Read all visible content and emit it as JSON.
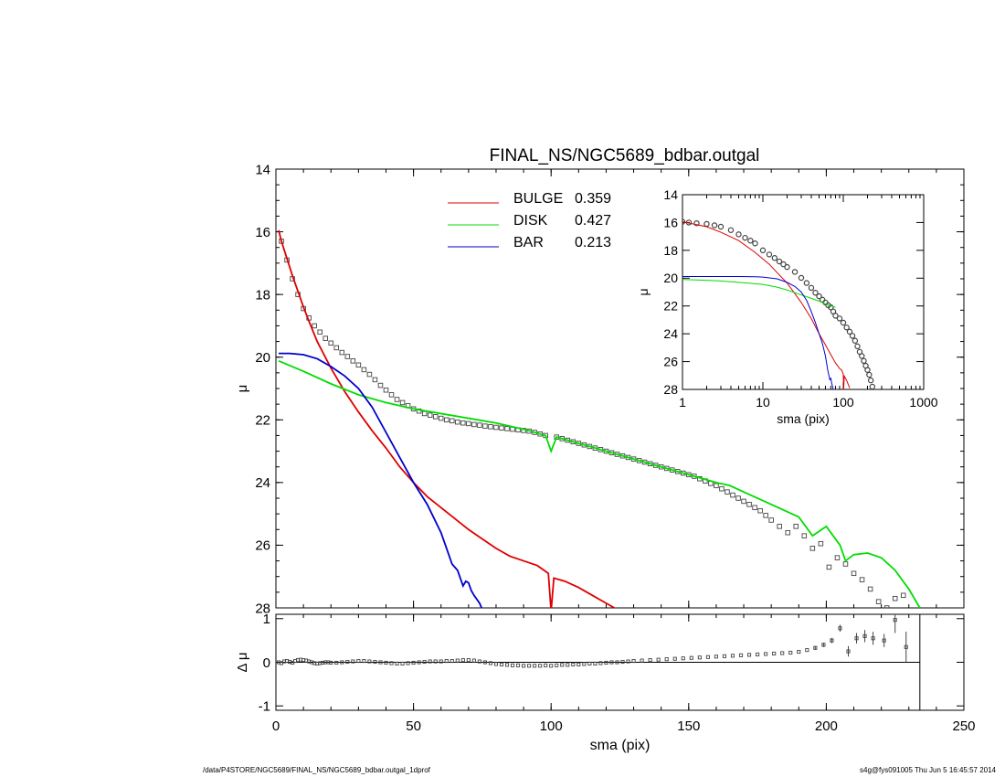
{
  "footer": {
    "left": "/data/P4STORE/NGC5689/FINAL_NS/NGC5689_bdbar.outgal_1dprof",
    "right": "s4g@fys091005  Thu Jun  5 16:45:57 2014"
  },
  "colors": {
    "bulge": "#dd0000",
    "disk": "#00dd00",
    "bar": "#0000cc",
    "data": "#444444"
  },
  "chart_data": [
    {
      "type": "line",
      "title": "FINAL_NS/NGC5689_bdbar.outgal",
      "xlabel": "sma (pix)",
      "ylabel": "μ",
      "xlim": [
        0,
        250
      ],
      "ylim": [
        28,
        14
      ],
      "xticks": [
        "0",
        "50",
        "100",
        "150",
        "200",
        "250"
      ],
      "yticks": [
        "14",
        "16",
        "18",
        "20",
        "22",
        "24",
        "26",
        "28"
      ],
      "legend": [
        {
          "label": "BULGE",
          "value": "0.359",
          "color": "#dd0000"
        },
        {
          "label": "DISK",
          "value": "0.427",
          "color": "#00dd00"
        },
        {
          "label": "BAR",
          "value": "0.213",
          "color": "#0000cc"
        }
      ],
      "legend_placement": "top-center",
      "series": [
        {
          "name": "BULGE",
          "color": "#dd0000",
          "x": [
            1,
            2,
            4,
            6,
            8,
            10,
            12,
            15,
            20,
            25,
            30,
            35,
            40,
            45,
            50,
            55,
            60,
            65,
            70,
            75,
            80,
            85,
            90,
            95,
            99,
            100,
            101,
            105,
            110,
            115,
            120,
            124
          ],
          "y": [
            15.95,
            16.3,
            16.85,
            17.4,
            17.9,
            18.4,
            18.85,
            19.5,
            20.35,
            21.1,
            21.75,
            22.35,
            22.9,
            23.5,
            24.0,
            24.45,
            24.8,
            25.15,
            25.5,
            25.8,
            26.1,
            26.35,
            26.5,
            26.65,
            26.9,
            28.1,
            27.05,
            27.15,
            27.35,
            27.6,
            27.85,
            28.05
          ]
        },
        {
          "name": "DISK",
          "color": "#00dd00",
          "x": [
            1,
            10,
            20,
            30,
            40,
            50,
            60,
            70,
            80,
            90,
            98,
            100,
            102,
            110,
            120,
            130,
            140,
            150,
            160,
            165,
            170,
            180,
            185,
            190,
            195,
            200,
            205,
            207,
            210,
            215,
            220,
            225,
            230,
            234
          ],
          "y": [
            20.12,
            20.45,
            20.85,
            21.2,
            21.45,
            21.65,
            21.8,
            21.95,
            22.1,
            22.3,
            22.5,
            23.0,
            22.55,
            22.75,
            23.0,
            23.25,
            23.5,
            23.75,
            24.0,
            24.1,
            24.3,
            24.7,
            24.9,
            25.1,
            25.7,
            25.4,
            26.0,
            26.5,
            26.3,
            26.25,
            26.4,
            26.8,
            27.4,
            28.0
          ]
        },
        {
          "name": "BAR",
          "color": "#0000cc",
          "x": [
            1,
            5,
            10,
            15,
            20,
            25,
            30,
            35,
            40,
            45,
            50,
            55,
            60,
            62,
            64,
            66,
            68,
            69,
            70,
            71,
            72,
            74,
            75
          ],
          "y": [
            19.88,
            19.88,
            19.92,
            20.05,
            20.3,
            20.6,
            21.0,
            21.6,
            22.4,
            23.2,
            24.0,
            24.7,
            25.6,
            26.1,
            26.6,
            26.8,
            27.3,
            27.15,
            27.2,
            27.45,
            27.6,
            27.85,
            28.05
          ]
        },
        {
          "name": "",
          "color": "#444444",
          "marker": "square",
          "x": [
            2,
            4,
            6,
            8,
            10,
            12,
            14,
            16,
            18,
            20,
            22,
            24,
            26,
            28,
            30,
            32,
            34,
            36,
            38,
            40,
            42,
            44,
            46,
            48,
            50,
            52,
            54,
            56,
            58,
            60,
            62,
            64,
            66,
            68,
            70,
            72,
            74,
            76,
            78,
            80,
            82,
            84,
            86,
            88,
            90,
            92,
            94,
            96,
            98,
            102,
            104,
            106,
            108,
            110,
            112,
            114,
            116,
            118,
            120,
            122,
            124,
            126,
            128,
            130,
            132,
            134,
            136,
            138,
            140,
            142,
            144,
            146,
            148,
            150,
            152,
            154,
            156,
            158,
            160,
            162,
            164,
            166,
            168,
            170,
            172,
            174,
            176,
            178,
            180,
            183,
            186,
            189,
            192,
            195,
            198,
            201,
            204,
            207,
            210,
            213,
            216,
            219,
            222,
            225,
            228
          ],
          "y": [
            16.3,
            16.9,
            17.5,
            18.0,
            18.45,
            18.75,
            19.0,
            19.2,
            19.4,
            19.55,
            19.7,
            19.85,
            19.98,
            20.12,
            20.25,
            20.4,
            20.55,
            20.72,
            20.9,
            21.05,
            21.2,
            21.35,
            21.45,
            21.55,
            21.65,
            21.72,
            21.8,
            21.85,
            21.9,
            21.95,
            22.0,
            22.03,
            22.07,
            22.1,
            22.12,
            22.15,
            22.17,
            22.2,
            22.22,
            22.24,
            22.26,
            22.28,
            22.3,
            22.32,
            22.34,
            22.36,
            22.4,
            22.45,
            22.5,
            22.55,
            22.6,
            22.65,
            22.7,
            22.75,
            22.8,
            22.85,
            22.9,
            22.95,
            23.0,
            23.05,
            23.1,
            23.15,
            23.2,
            23.25,
            23.3,
            23.35,
            23.4,
            23.45,
            23.5,
            23.55,
            23.6,
            23.65,
            23.7,
            23.75,
            23.8,
            23.88,
            23.95,
            24.03,
            24.1,
            24.2,
            24.3,
            24.4,
            24.5,
            24.6,
            24.7,
            24.8,
            24.9,
            25.05,
            25.2,
            25.4,
            25.6,
            25.4,
            25.7,
            26.1,
            25.95,
            26.7,
            26.4,
            26.6,
            26.9,
            27.1,
            27.4,
            27.8,
            28.0,
            27.7,
            27.6
          ]
        }
      ]
    },
    {
      "type": "scatter",
      "ylabel": "Δ μ",
      "xlim": [
        0,
        250
      ],
      "ylim": [
        -1.1,
        1.1
      ],
      "xticks": [
        "0",
        "50",
        "100",
        "150",
        "200",
        "250"
      ],
      "yticks": [
        "-1",
        "0",
        "1"
      ],
      "vline_x": 234,
      "series": [
        {
          "name": "",
          "color": "#444444",
          "marker": "square",
          "x": [
            1,
            2,
            3,
            4,
            5,
            6,
            7,
            8,
            9,
            10,
            11,
            12,
            13,
            14,
            15,
            16,
            17,
            18,
            19,
            20,
            22,
            24,
            26,
            28,
            30,
            32,
            34,
            36,
            38,
            40,
            42,
            44,
            46,
            48,
            50,
            52,
            54,
            56,
            58,
            60,
            62,
            64,
            66,
            68,
            70,
            72,
            74,
            76,
            78,
            80,
            82,
            84,
            86,
            88,
            90,
            92,
            94,
            96,
            98,
            100,
            102,
            104,
            106,
            108,
            110,
            112,
            114,
            116,
            118,
            120,
            122,
            124,
            126,
            128,
            130,
            133,
            136,
            139,
            142,
            145,
            148,
            151,
            154,
            157,
            160,
            163,
            166,
            169,
            172,
            175,
            178,
            181,
            184,
            187,
            190,
            193,
            196,
            199,
            202,
            205,
            208,
            211,
            214,
            217,
            221,
            225,
            229
          ],
          "y": [
            0.0,
            -0.02,
            0.02,
            0.03,
            0.01,
            -0.01,
            0.03,
            0.05,
            0.06,
            0.05,
            0.04,
            0.02,
            0.0,
            -0.02,
            -0.03,
            -0.02,
            -0.01,
            0.0,
            0.0,
            -0.01,
            -0.01,
            0.0,
            0.01,
            0.02,
            0.03,
            0.03,
            0.02,
            0.01,
            0.0,
            -0.01,
            -0.02,
            -0.03,
            -0.03,
            -0.02,
            -0.01,
            0.0,
            0.01,
            0.02,
            0.02,
            0.02,
            0.03,
            0.03,
            0.04,
            0.05,
            0.05,
            0.04,
            0.02,
            0.0,
            -0.02,
            -0.04,
            -0.05,
            -0.06,
            -0.07,
            -0.07,
            -0.08,
            -0.08,
            -0.08,
            -0.08,
            -0.07,
            -0.08,
            -0.07,
            -0.06,
            -0.06,
            -0.05,
            -0.05,
            -0.04,
            -0.03,
            -0.03,
            -0.02,
            -0.01,
            0.0,
            0.0,
            0.01,
            0.02,
            0.03,
            0.04,
            0.05,
            0.06,
            0.07,
            0.08,
            0.09,
            0.1,
            0.11,
            0.12,
            0.13,
            0.14,
            0.15,
            0.16,
            0.17,
            0.18,
            0.19,
            0.2,
            0.21,
            0.22,
            0.24,
            0.28,
            0.33,
            0.4,
            0.5,
            0.78,
            0.25,
            0.55,
            0.6,
            0.55,
            0.5,
            0.97,
            0.35
          ],
          "err": [
            0,
            0,
            0,
            0,
            0,
            0,
            0,
            0,
            0,
            0,
            0,
            0,
            0,
            0,
            0,
            0,
            0,
            0,
            0,
            0,
            0,
            0,
            0,
            0,
            0,
            0,
            0,
            0,
            0,
            0,
            0,
            0,
            0,
            0,
            0,
            0,
            0,
            0,
            0,
            0,
            0,
            0,
            0,
            0,
            0,
            0,
            0,
            0,
            0,
            0,
            0,
            0,
            0,
            0,
            0,
            0,
            0,
            0,
            0,
            0,
            0,
            0,
            0,
            0,
            0,
            0,
            0,
            0,
            0,
            0,
            0,
            0,
            0,
            0,
            0,
            0,
            0,
            0,
            0,
            0,
            0,
            0,
            0,
            0,
            0,
            0,
            0,
            0,
            0,
            0,
            0,
            0,
            0,
            0,
            0,
            0,
            0.04,
            0.05,
            0.06,
            0.08,
            0.12,
            0.12,
            0.14,
            0.15,
            0.15,
            0.3,
            0.35
          ]
        }
      ]
    },
    {
      "type": "line",
      "xlabel": "sma (pix)",
      "ylabel": "μ",
      "xscale": "log",
      "xlim": [
        1,
        1000
      ],
      "ylim": [
        28,
        14
      ],
      "xticks": [
        "1",
        "10",
        "100",
        "1000"
      ],
      "yticks": [
        "14",
        "16",
        "18",
        "20",
        "22",
        "24",
        "26",
        "28"
      ],
      "series": [
        {
          "name": "",
          "color": "#dd0000",
          "x": [
            1,
            2,
            3,
            5,
            8,
            12,
            15,
            20,
            30,
            40,
            50,
            60,
            70,
            80,
            90,
            95,
            100,
            101,
            103,
            110,
            120
          ],
          "y": [
            15.95,
            16.3,
            16.7,
            17.3,
            18.15,
            19.0,
            19.6,
            20.35,
            21.75,
            22.9,
            24.0,
            24.8,
            25.5,
            26.1,
            26.5,
            26.6,
            26.9,
            28.0,
            27.05,
            27.35,
            27.9
          ]
        },
        {
          "name": "",
          "color": "#00dd00",
          "x": [
            1,
            2,
            3,
            5,
            8,
            10,
            15,
            20,
            30,
            40,
            50,
            60,
            70,
            80
          ],
          "y": [
            20.1,
            20.15,
            20.2,
            20.3,
            20.4,
            20.45,
            20.65,
            20.85,
            21.2,
            21.45,
            21.65,
            21.85,
            22.0,
            22.1
          ]
        },
        {
          "name": "",
          "color": "#0000cc",
          "x": [
            1,
            2,
            3,
            5,
            8,
            10,
            15,
            20,
            25,
            30,
            35,
            40,
            45,
            50,
            55,
            60,
            64,
            68,
            70,
            72,
            74,
            75
          ],
          "y": [
            19.88,
            19.88,
            19.88,
            19.88,
            19.9,
            19.92,
            20.05,
            20.3,
            20.6,
            21.0,
            21.6,
            22.4,
            23.2,
            24.0,
            24.7,
            25.6,
            26.6,
            27.3,
            27.2,
            27.6,
            27.85,
            28.05
          ]
        },
        {
          "name": "",
          "color": "#444444",
          "marker": "circle",
          "x": [
            1,
            1.2,
            1.5,
            2,
            2.5,
            3,
            4,
            5,
            6,
            7,
            8,
            10,
            12,
            14,
            16,
            18,
            20,
            25,
            30,
            35,
            40,
            45,
            50,
            55,
            60,
            65,
            70,
            75,
            80,
            90,
            100,
            110,
            120,
            130,
            140,
            150,
            160,
            170,
            180,
            190,
            200,
            210,
            220,
            230
          ],
          "y": [
            15.95,
            16.0,
            16.05,
            16.1,
            16.2,
            16.3,
            16.55,
            16.85,
            17.1,
            17.3,
            17.5,
            18.0,
            18.3,
            18.55,
            18.8,
            19.0,
            19.2,
            19.55,
            19.98,
            20.35,
            20.7,
            21.05,
            21.3,
            21.55,
            21.75,
            21.95,
            22.1,
            22.4,
            22.7,
            22.9,
            23.2,
            23.55,
            23.85,
            24.15,
            24.5,
            24.9,
            25.3,
            25.6,
            25.95,
            26.3,
            26.6,
            26.95,
            27.35,
            27.8
          ]
        }
      ]
    }
  ]
}
